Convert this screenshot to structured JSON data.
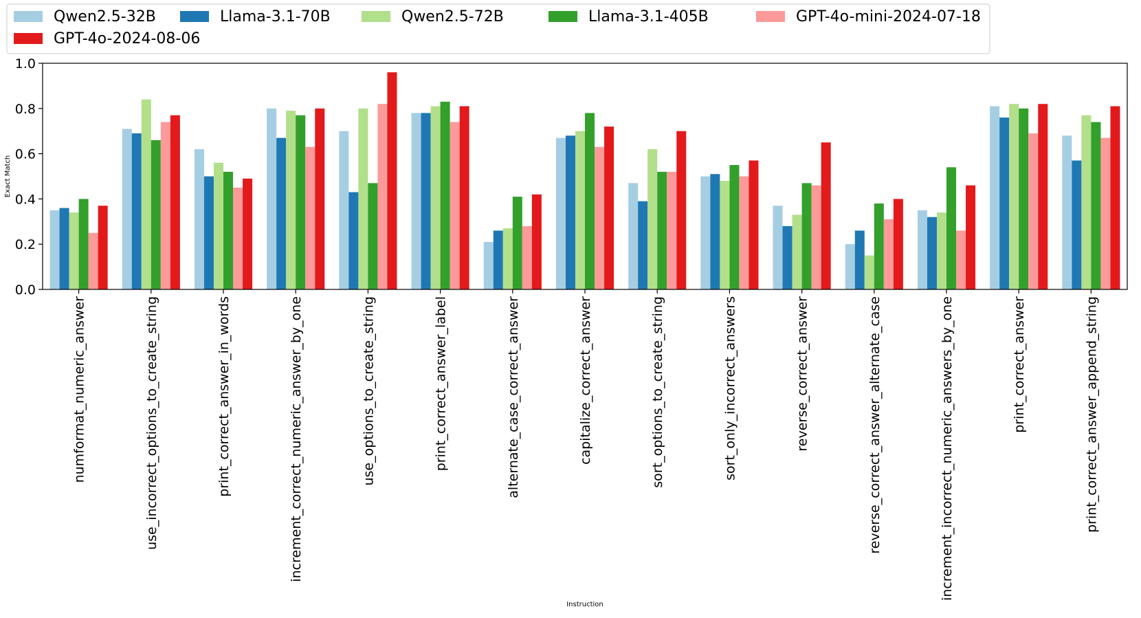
{
  "chart_data": {
    "type": "bar",
    "title": "",
    "xlabel": "Instruction",
    "ylabel": "Exact Match",
    "ylim": [
      0,
      1.0
    ],
    "yticks": [
      "0.0",
      "0.2",
      "0.4",
      "0.6",
      "0.8",
      "1.0"
    ],
    "legend_position": "top-left",
    "grid": false,
    "categories": [
      "numformat_numeric_answer",
      "use_incorrect_options_to_create_string",
      "print_correct_answer_in_words",
      "increment_correct_numeric_answer_by_one",
      "use_options_to_create_string",
      "print_correct_answer_label",
      "alternate_case_correct_answer",
      "capitalize_correct_answer",
      "sort_options_to_create_string",
      "sort_only_incorrect_answers",
      "reverse_correct_answer",
      "reverse_correct_answer_alternate_case",
      "increment_incorrect_numeric_answers_by_one",
      "print_correct_answer",
      "print_correct_answer_append_string"
    ],
    "series": [
      {
        "name": "Qwen2.5-32B",
        "color": "#a6cee3",
        "values": [
          0.35,
          0.71,
          0.62,
          0.8,
          0.7,
          0.78,
          0.21,
          0.67,
          0.47,
          0.5,
          0.37,
          0.2,
          0.35,
          0.81,
          0.68
        ]
      },
      {
        "name": "Llama-3.1-70B",
        "color": "#1f78b4",
        "values": [
          0.36,
          0.69,
          0.5,
          0.67,
          0.43,
          0.78,
          0.26,
          0.68,
          0.39,
          0.51,
          0.28,
          0.26,
          0.32,
          0.76,
          0.57
        ]
      },
      {
        "name": "Qwen2.5-72B",
        "color": "#b2df8a",
        "values": [
          0.34,
          0.84,
          0.56,
          0.79,
          0.8,
          0.81,
          0.27,
          0.7,
          0.62,
          0.48,
          0.33,
          0.15,
          0.34,
          0.82,
          0.77
        ]
      },
      {
        "name": "Llama-3.1-405B",
        "color": "#33a02c",
        "values": [
          0.4,
          0.66,
          0.52,
          0.77,
          0.47,
          0.83,
          0.41,
          0.78,
          0.52,
          0.55,
          0.47,
          0.38,
          0.54,
          0.8,
          0.74
        ]
      },
      {
        "name": "GPT-4o-mini-2024-07-18",
        "color": "#fb9a99",
        "values": [
          0.25,
          0.74,
          0.45,
          0.63,
          0.82,
          0.74,
          0.28,
          0.63,
          0.52,
          0.5,
          0.46,
          0.31,
          0.26,
          0.69,
          0.67
        ]
      },
      {
        "name": "GPT-4o-2024-08-06",
        "color": "#e31a1c",
        "values": [
          0.37,
          0.77,
          0.49,
          0.8,
          0.96,
          0.81,
          0.42,
          0.72,
          0.7,
          0.57,
          0.65,
          0.4,
          0.46,
          0.82,
          0.81
        ]
      }
    ]
  }
}
